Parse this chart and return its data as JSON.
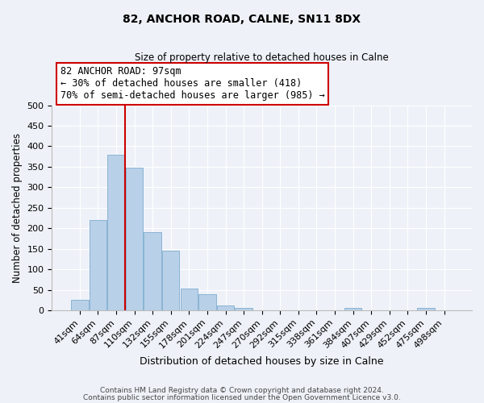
{
  "title": "82, ANCHOR ROAD, CALNE, SN11 8DX",
  "subtitle": "Size of property relative to detached houses in Calne",
  "xlabel": "Distribution of detached houses by size in Calne",
  "ylabel": "Number of detached properties",
  "bar_labels": [
    "41sqm",
    "64sqm",
    "87sqm",
    "110sqm",
    "132sqm",
    "155sqm",
    "178sqm",
    "201sqm",
    "224sqm",
    "247sqm",
    "270sqm",
    "292sqm",
    "315sqm",
    "338sqm",
    "361sqm",
    "384sqm",
    "407sqm",
    "429sqm",
    "452sqm",
    "475sqm",
    "498sqm"
  ],
  "bar_values": [
    25,
    220,
    380,
    348,
    190,
    146,
    53,
    40,
    12,
    6,
    0,
    0,
    0,
    0,
    0,
    6,
    0,
    0,
    0,
    5,
    0
  ],
  "bar_color": "#b8d0e8",
  "bar_edge_color": "#8ab4d4",
  "vline_x": 2.5,
  "vline_color": "#cc0000",
  "annotation_text": "82 ANCHOR ROAD: 97sqm\n← 30% of detached houses are smaller (418)\n70% of semi-detached houses are larger (985) →",
  "annotation_box_color": "#ffffff",
  "annotation_box_edge_color": "#cc0000",
  "ylim": [
    0,
    500
  ],
  "yticks": [
    0,
    50,
    100,
    150,
    200,
    250,
    300,
    350,
    400,
    450,
    500
  ],
  "footer_line1": "Contains HM Land Registry data © Crown copyright and database right 2024.",
  "footer_line2": "Contains public sector information licensed under the Open Government Licence v3.0.",
  "bg_color": "#eef2f8",
  "plot_bg_color": "#eef2f8",
  "grid_color": "#ffffff",
  "annotation_fontsize": 8.5,
  "title_fontsize": 10,
  "subtitle_fontsize": 8.5,
  "xlabel_fontsize": 9,
  "ylabel_fontsize": 8.5,
  "tick_fontsize": 8,
  "footer_fontsize": 6.5
}
